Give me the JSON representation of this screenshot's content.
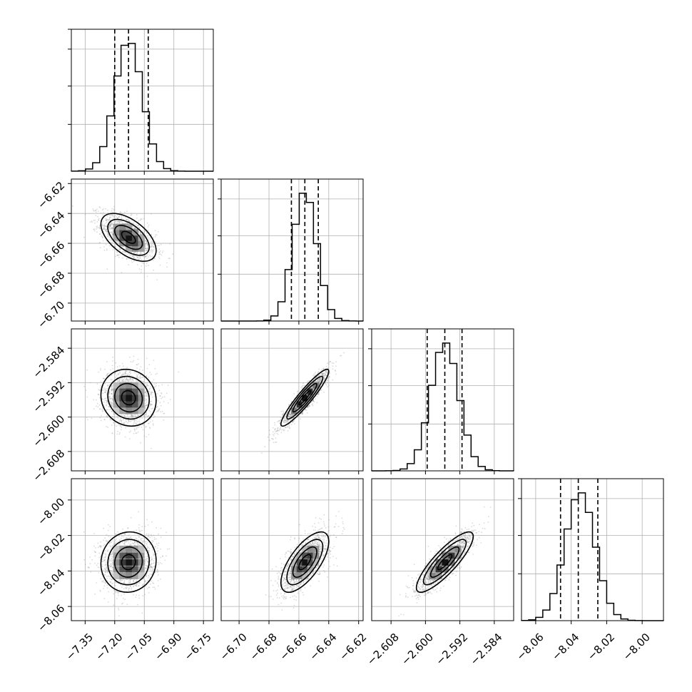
{
  "chart_data": {
    "type": "corner",
    "grid": true,
    "params": [
      {
        "range": [
          -7.42,
          -6.7
        ],
        "ticks": [
          "−7.35",
          "−7.20",
          "−7.05",
          "−6.90",
          "−6.75"
        ],
        "tick_values": [
          -7.35,
          -7.2,
          -7.05,
          -6.9,
          -6.75
        ],
        "mean": -7.13,
        "sd": 0.07,
        "quantiles": [
          -7.2,
          -7.13,
          -7.03
        ]
      },
      {
        "range": [
          -6.712,
          -6.617
        ],
        "ticks": [
          "−6.70",
          "−6.68",
          "−6.66",
          "−6.64",
          "−6.62"
        ],
        "tick_values": [
          -6.7,
          -6.68,
          -6.66,
          -6.64,
          -6.62
        ],
        "mean": -6.656,
        "sd": 0.008,
        "quantiles": [
          -6.665,
          -6.656,
          -6.647
        ]
      },
      {
        "range": [
          -2.6125,
          -2.5795
        ],
        "ticks": [
          "−2.608",
          "−2.600",
          "−2.592",
          "−2.584"
        ],
        "tick_values": [
          -2.608,
          -2.6,
          -2.592,
          -2.584
        ],
        "mean": -2.5955,
        "sd": 0.0033,
        "quantiles": [
          -2.5996,
          -2.5955,
          -2.5915
        ]
      },
      {
        "range": [
          -8.068,
          -7.988
        ],
        "ticks": [
          "−8.06",
          "−8.04",
          "−8.02",
          "−8.00"
        ],
        "tick_values": [
          -8.06,
          -8.04,
          -8.02,
          -8.0
        ],
        "mean": -8.035,
        "sd": 0.0085,
        "quantiles": [
          -8.046,
          -8.036,
          -8.025
        ]
      }
    ],
    "pairs": [
      {
        "row": 1,
        "col": 0,
        "corr": -0.55
      },
      {
        "row": 2,
        "col": 0,
        "corr": -0.1
      },
      {
        "row": 2,
        "col": 1,
        "corr": 0.93
      },
      {
        "row": 3,
        "col": 0,
        "corr": 0.05
      },
      {
        "row": 3,
        "col": 1,
        "corr": 0.68
      },
      {
        "row": 3,
        "col": 2,
        "corr": 0.85
      }
    ]
  }
}
